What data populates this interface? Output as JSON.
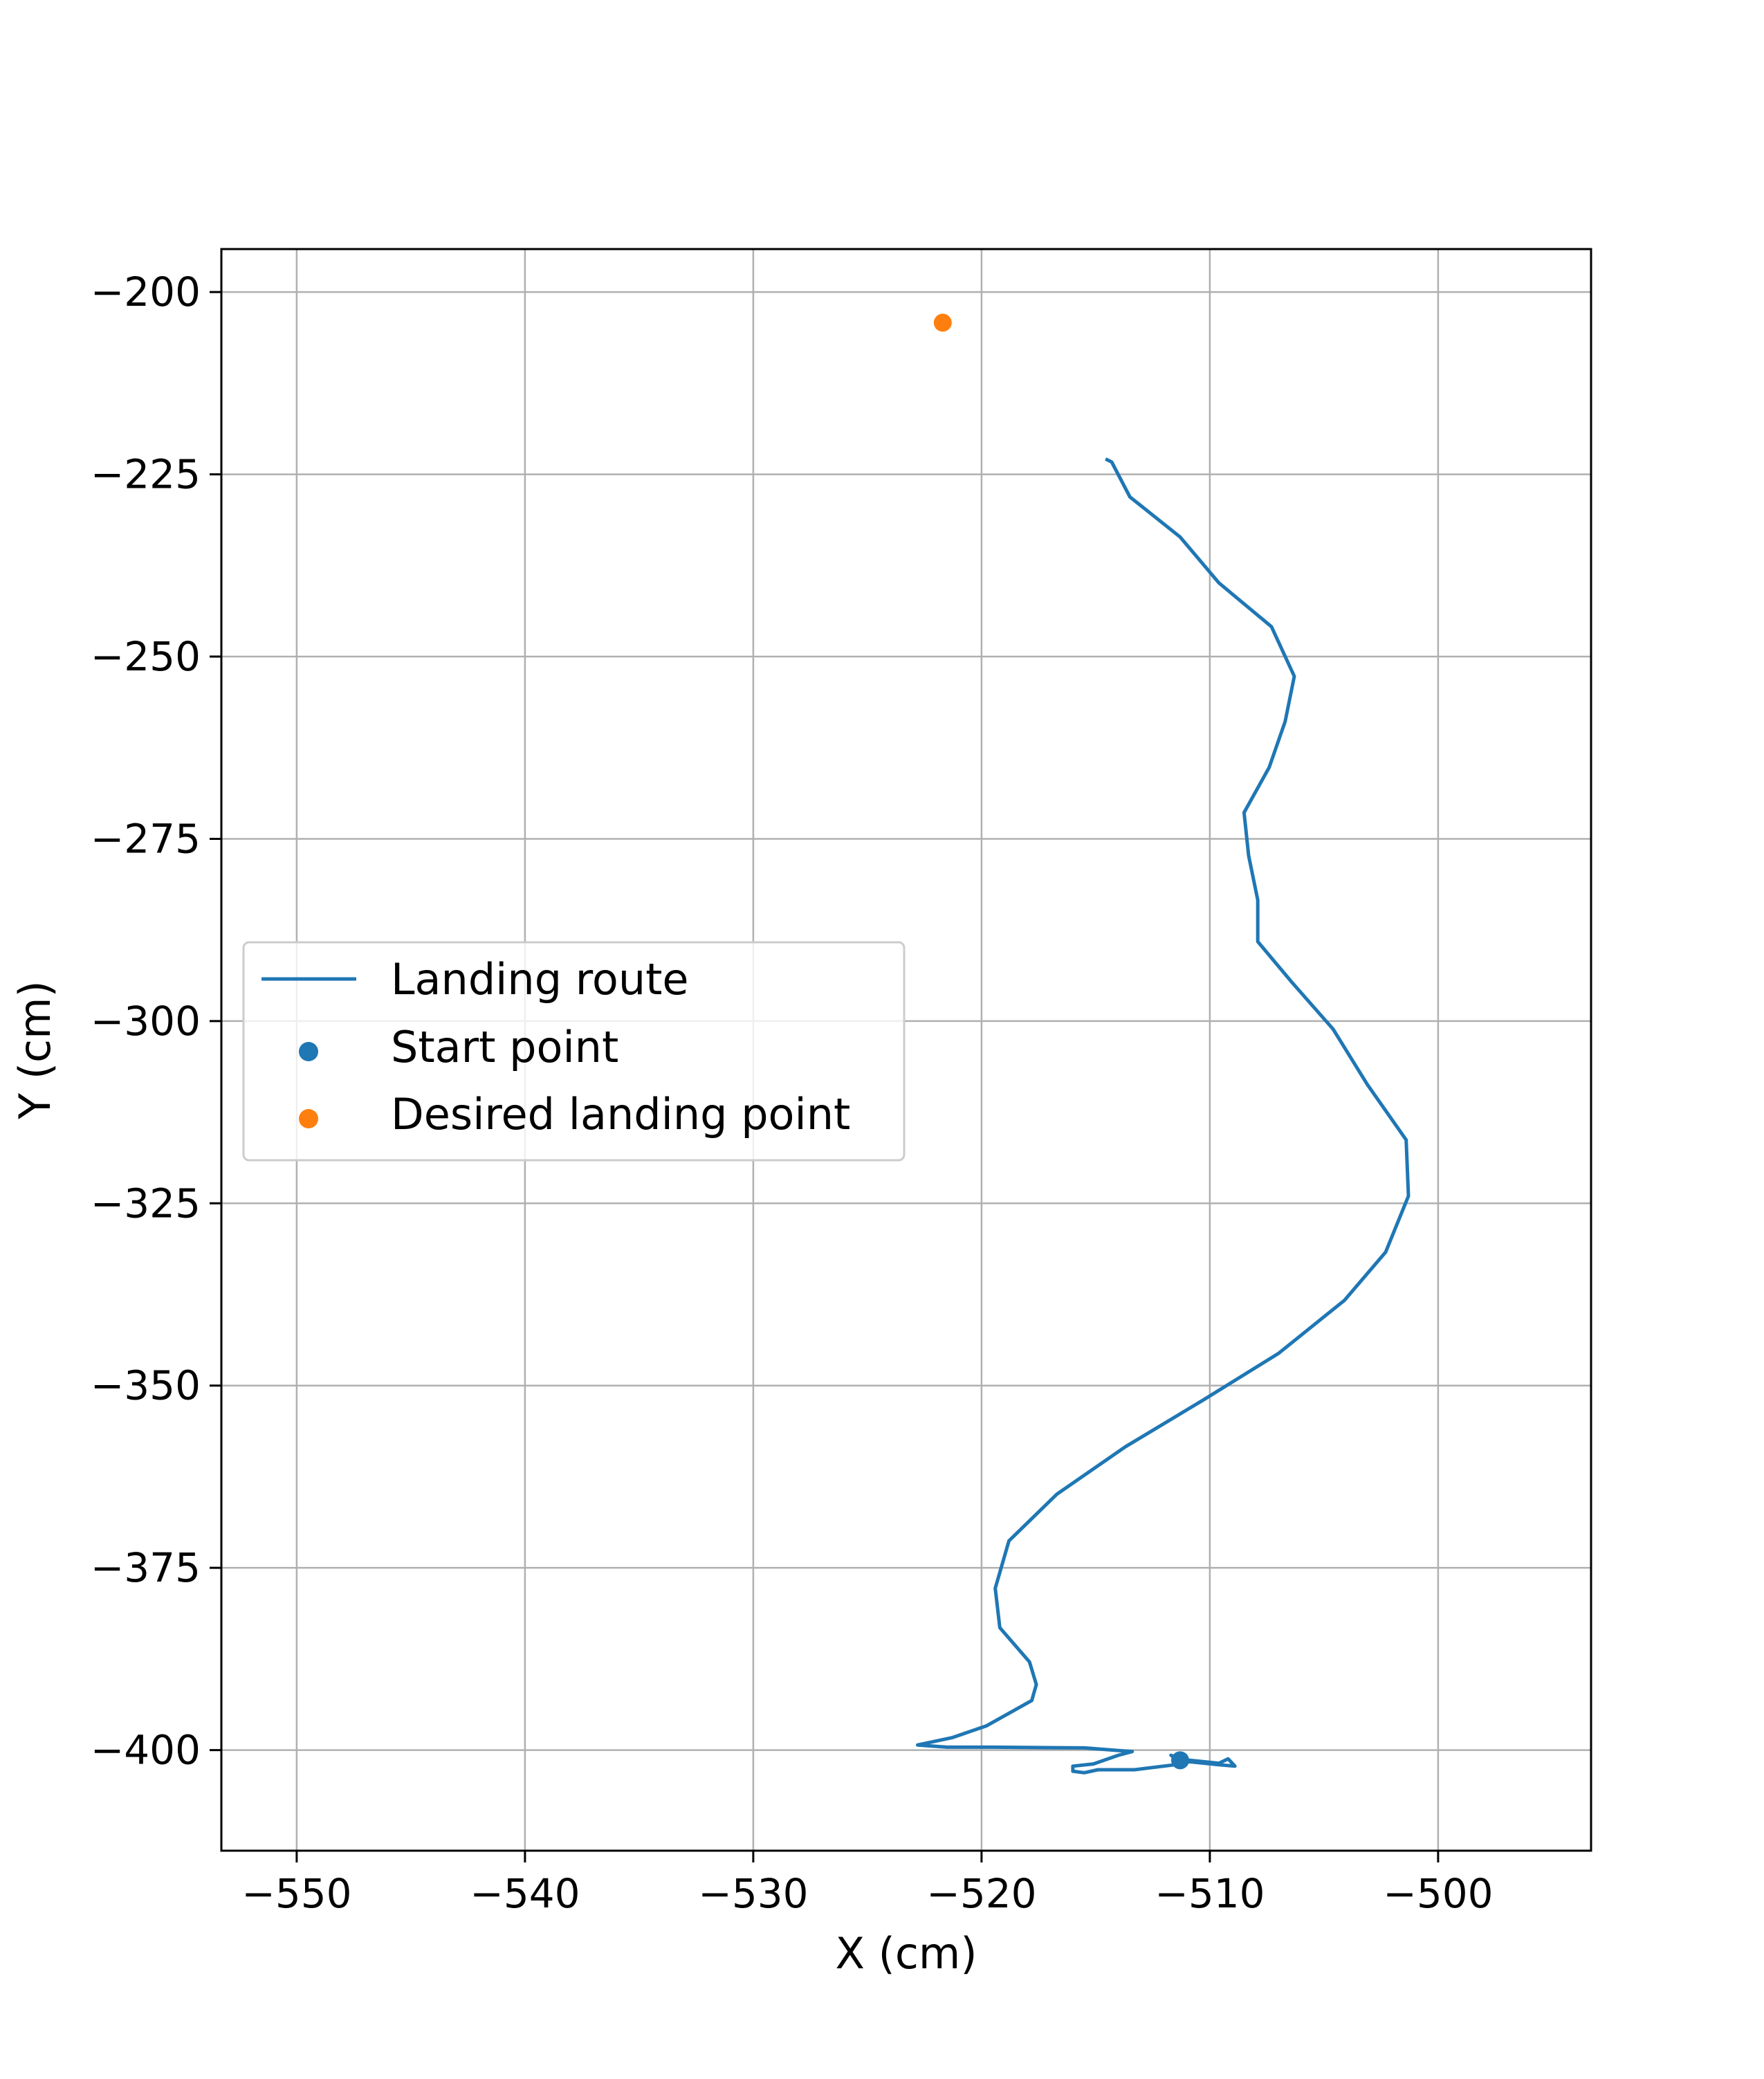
{
  "chart_data": {
    "type": "line",
    "title": "",
    "xlabel": "X (cm)",
    "ylabel": "Y (cm)",
    "xlim": [
      -553.3,
      -493.3
    ],
    "ylim": [
      -413.8,
      -194.1
    ],
    "x_ticks": [
      -550,
      -540,
      -530,
      -520,
      -510,
      -500
    ],
    "y_ticks": [
      -200,
      -225,
      -250,
      -275,
      -300,
      -325,
      -350,
      -375,
      -400
    ],
    "x_tick_labels": [
      "−550",
      "−540",
      "−530",
      "−520",
      "−510",
      "−500"
    ],
    "y_tick_labels": [
      "−200",
      "−225",
      "−250",
      "−275",
      "−300",
      "−325",
      "−350",
      "−375",
      "−400"
    ],
    "grid": true,
    "legend_position": "center-left",
    "series": [
      {
        "name": "Landing route",
        "kind": "line",
        "color": "#1f77b4",
        "points": [
          [
            -511.3,
            -401.5
          ],
          [
            -511.7,
            -400.7
          ],
          [
            -511.5,
            -401.2
          ],
          [
            -509.6,
            -401.8
          ],
          [
            -509.2,
            -401.2
          ],
          [
            -508.9,
            -402.2
          ],
          [
            -509.6,
            -402.0
          ],
          [
            -510.9,
            -401.6
          ],
          [
            -511.5,
            -402.0
          ],
          [
            -513.3,
            -402.7
          ],
          [
            -514.9,
            -402.7
          ],
          [
            -515.5,
            -403.1
          ],
          [
            -516.0,
            -402.9
          ],
          [
            -516.0,
            -402.2
          ],
          [
            -515.1,
            -401.9
          ],
          [
            -514.0,
            -400.7
          ],
          [
            -513.4,
            -400.2
          ],
          [
            -515.5,
            -399.7
          ],
          [
            -519.5,
            -399.6
          ],
          [
            -521.5,
            -399.6
          ],
          [
            -522.8,
            -399.3
          ],
          [
            -521.3,
            -398.3
          ],
          [
            -519.8,
            -396.7
          ],
          [
            -517.8,
            -393.2
          ],
          [
            -517.6,
            -391.0
          ],
          [
            -517.9,
            -387.9
          ],
          [
            -519.2,
            -383.2
          ],
          [
            -519.4,
            -377.8
          ],
          [
            -518.8,
            -371.3
          ],
          [
            -516.7,
            -364.9
          ],
          [
            -513.7,
            -358.4
          ],
          [
            -510.3,
            -352.0
          ],
          [
            -507.0,
            -345.6
          ],
          [
            -504.1,
            -338.3
          ],
          [
            -502.3,
            -331.7
          ],
          [
            -501.3,
            -324.0
          ],
          [
            -501.4,
            -316.3
          ],
          [
            -503.1,
            -308.7
          ],
          [
            -504.6,
            -301.1
          ],
          [
            -506.4,
            -294.7
          ],
          [
            -507.9,
            -289.1
          ],
          [
            -507.9,
            -283.4
          ],
          [
            -508.3,
            -277.3
          ],
          [
            -508.5,
            -271.4
          ],
          [
            -507.4,
            -265.2
          ],
          [
            -506.7,
            -258.9
          ],
          [
            -506.3,
            -252.7
          ],
          [
            -507.3,
            -245.9
          ],
          [
            -509.6,
            -239.9
          ],
          [
            -511.3,
            -233.6
          ],
          [
            -513.5,
            -228.1
          ],
          [
            -514.3,
            -223.3
          ],
          [
            -514.5,
            -223.0
          ]
        ]
      },
      {
        "name": "Start point",
        "kind": "scatter",
        "color": "#1f77b4",
        "points": [
          [
            -511.3,
            -401.4
          ]
        ]
      },
      {
        "name": "Desired landing point",
        "kind": "scatter",
        "color": "#ff7f0e",
        "points": [
          [
            -521.7,
            -204.2
          ]
        ]
      }
    ]
  }
}
